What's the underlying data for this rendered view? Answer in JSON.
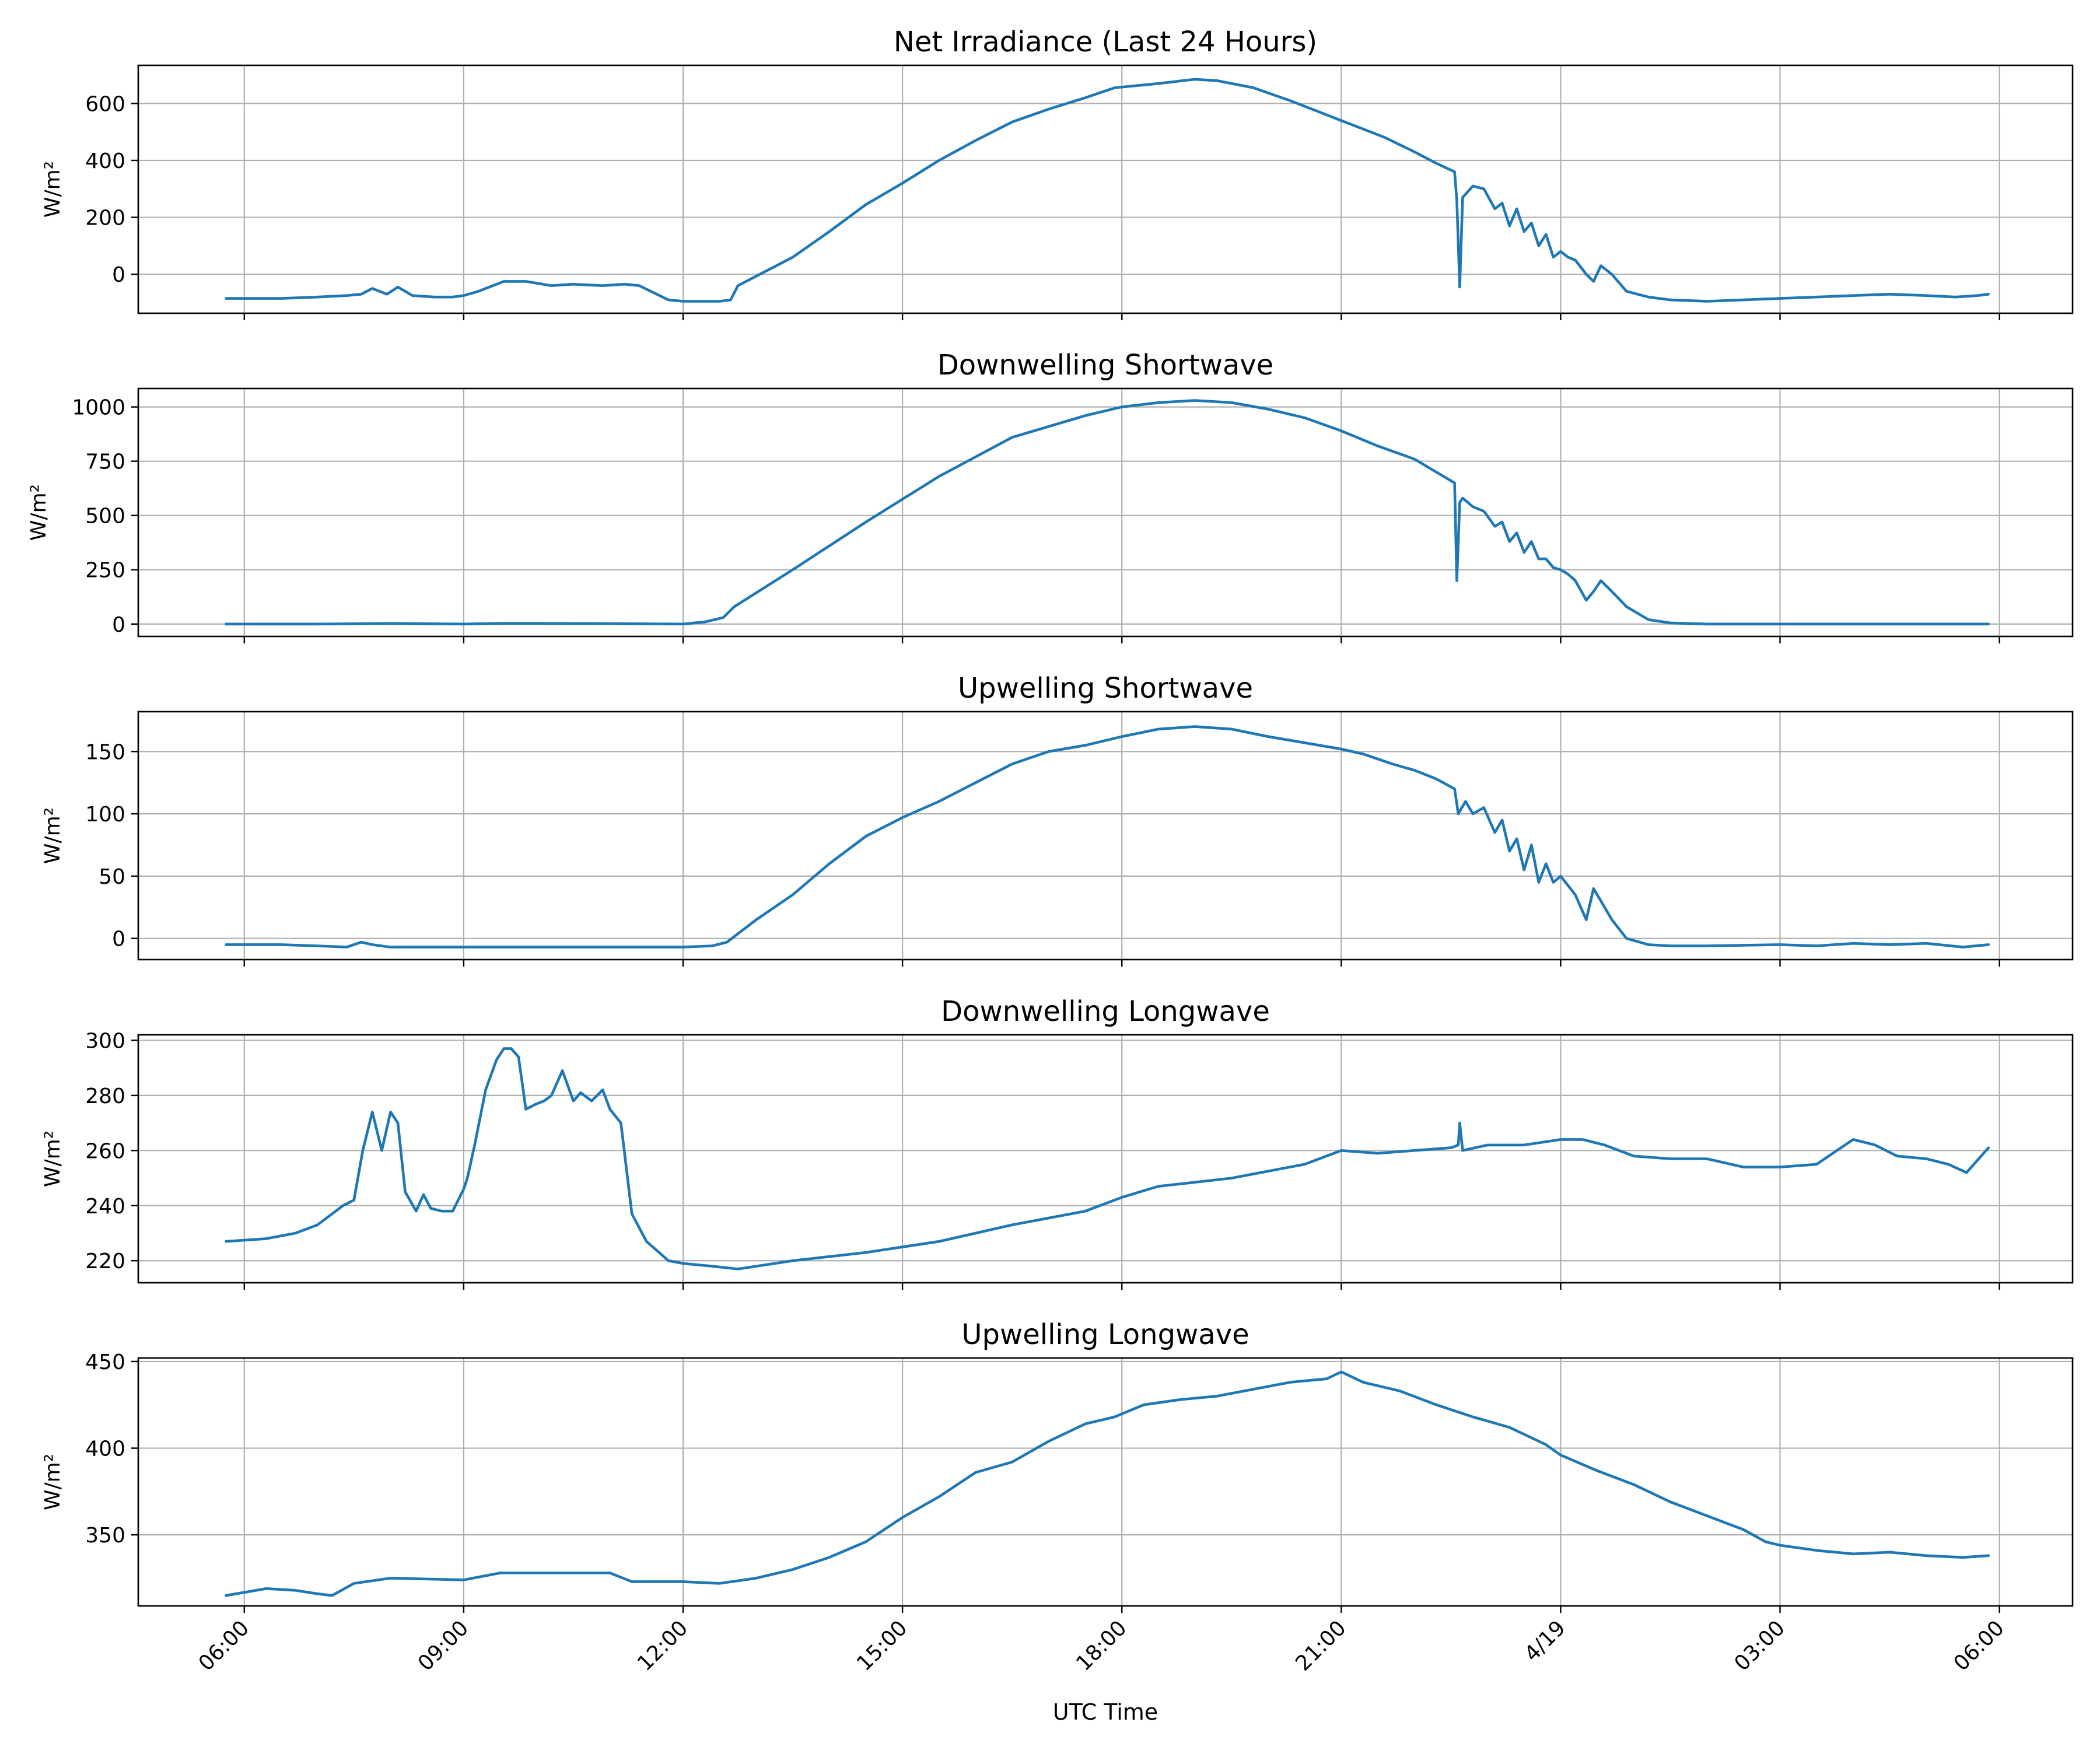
{
  "colors": {
    "series": "#1f77b4",
    "grid": "#b0b0b0"
  },
  "x_axis": {
    "label": "UTC Time",
    "tick_labels": [
      "06:00",
      "09:00",
      "12:00",
      "15:00",
      "18:00",
      "21:00",
      "4/19",
      "03:00",
      "06:00"
    ],
    "tick_hours": [
      6,
      9,
      12,
      15,
      18,
      21,
      24,
      27,
      30
    ],
    "range_hours": [
      4.55,
      31.0
    ],
    "tick_label_rotation_deg": 45
  },
  "chart_data": [
    {
      "type": "line",
      "title": "Net Irradiance (Last 24 Hours)",
      "ylabel": "W/m²",
      "ylim": [
        -137,
        734
      ],
      "yticks": [
        0,
        200,
        400,
        600
      ],
      "grid": true,
      "series": [
        {
          "x_hours": [
            5.75,
            6.5,
            7.0,
            7.4,
            7.6,
            7.75,
            7.95,
            8.1,
            8.3,
            8.6,
            8.85,
            9.0,
            9.2,
            9.4,
            9.55,
            9.7,
            9.85,
            10.2,
            10.5,
            10.9,
            11.2,
            11.4,
            11.8,
            12.0,
            12.5,
            12.65,
            12.75,
            13.5,
            14.0,
            14.5,
            15.0,
            15.5,
            16.0,
            16.5,
            17.0,
            17.5,
            17.9,
            18.5,
            19.0,
            19.3,
            19.8,
            20.3,
            20.8,
            21.2,
            21.6,
            22.0,
            22.3,
            22.55,
            22.58,
            22.62,
            22.66,
            22.8,
            22.95,
            23.1,
            23.2,
            23.3,
            23.4,
            23.5,
            23.6,
            23.7,
            23.8,
            23.9,
            24.0,
            24.1,
            24.2,
            24.35,
            24.45,
            24.55,
            24.7,
            24.9,
            25.2,
            25.5,
            26.0,
            26.5,
            27.0,
            27.5,
            28.0,
            28.5,
            29.0,
            29.4,
            29.7,
            29.85
          ],
          "y": [
            -85,
            -85,
            -80,
            -75,
            -70,
            -50,
            -70,
            -45,
            -75,
            -80,
            -80,
            -75,
            -60,
            -40,
            -25,
            -25,
            -25,
            -40,
            -35,
            -40,
            -35,
            -40,
            -90,
            -95,
            -95,
            -90,
            -40,
            60,
            150,
            245,
            320,
            400,
            470,
            535,
            580,
            620,
            655,
            670,
            685,
            680,
            655,
            610,
            560,
            520,
            480,
            430,
            390,
            360,
            260,
            -45,
            270,
            310,
            300,
            230,
            250,
            170,
            230,
            150,
            180,
            100,
            140,
            60,
            80,
            60,
            50,
            0,
            -25,
            30,
            0,
            -60,
            -80,
            -90,
            -95,
            -90,
            -85,
            -80,
            -75,
            -70,
            -75,
            -80,
            -75,
            -70
          ]
        }
      ]
    },
    {
      "type": "line",
      "title": "Downwelling Shortwave",
      "ylabel": "W/m²",
      "ylim": [
        -57,
        1085
      ],
      "yticks": [
        0,
        250,
        500,
        750,
        1000
      ],
      "grid": true,
      "series": [
        {
          "x_hours": [
            5.75,
            7.0,
            8.0,
            9.0,
            9.5,
            10.0,
            11.0,
            12.0,
            12.3,
            12.55,
            12.7,
            13.5,
            14.5,
            15.5,
            16.5,
            17.5,
            18.0,
            18.5,
            19.0,
            19.5,
            20.0,
            20.5,
            21.0,
            21.5,
            22.0,
            22.3,
            22.55,
            22.58,
            22.62,
            22.66,
            22.8,
            22.95,
            23.1,
            23.2,
            23.3,
            23.4,
            23.5,
            23.6,
            23.7,
            23.8,
            23.9,
            24.0,
            24.1,
            24.2,
            24.35,
            24.45,
            24.55,
            24.7,
            24.9,
            25.2,
            25.5,
            26.0,
            27.0,
            28.0,
            29.0,
            29.85
          ],
          "y": [
            0,
            0,
            3,
            0,
            3,
            3,
            2,
            0,
            10,
            30,
            80,
            250,
            470,
            680,
            860,
            960,
            1000,
            1020,
            1030,
            1020,
            990,
            950,
            890,
            820,
            760,
            700,
            650,
            200,
            560,
            580,
            540,
            520,
            450,
            470,
            380,
            420,
            330,
            380,
            300,
            300,
            260,
            250,
            230,
            200,
            110,
            150,
            200,
            150,
            80,
            20,
            5,
            0,
            0,
            0,
            0,
            0
          ]
        }
      ]
    },
    {
      "type": "line",
      "title": "Upwelling Shortwave",
      "ylabel": "W/m²",
      "ylim": [
        -17,
        182
      ],
      "yticks": [
        0,
        50,
        100,
        150
      ],
      "grid": true,
      "series": [
        {
          "x_hours": [
            5.75,
            6.5,
            7.0,
            7.4,
            7.6,
            7.75,
            8.0,
            9.0,
            10.0,
            11.0,
            12.0,
            12.4,
            12.6,
            13.0,
            13.5,
            14.0,
            14.5,
            15.0,
            15.5,
            16.0,
            16.5,
            17.0,
            17.5,
            18.0,
            18.5,
            19.0,
            19.5,
            20.0,
            20.5,
            21.0,
            21.3,
            21.7,
            22.0,
            22.3,
            22.55,
            22.6,
            22.7,
            22.8,
            22.95,
            23.1,
            23.2,
            23.3,
            23.4,
            23.5,
            23.6,
            23.7,
            23.8,
            23.9,
            24.0,
            24.2,
            24.35,
            24.45,
            24.55,
            24.7,
            24.9,
            25.2,
            25.5,
            26.0,
            27.0,
            27.5,
            28.0,
            28.5,
            29.0,
            29.5,
            29.85
          ],
          "y": [
            -5,
            -5,
            -6,
            -7,
            -3,
            -5,
            -7,
            -7,
            -7,
            -7,
            -7,
            -6,
            -3,
            15,
            35,
            60,
            82,
            97,
            110,
            125,
            140,
            150,
            155,
            162,
            168,
            170,
            168,
            162,
            157,
            152,
            148,
            140,
            135,
            128,
            120,
            100,
            110,
            100,
            105,
            85,
            95,
            70,
            80,
            55,
            75,
            45,
            60,
            45,
            50,
            35,
            15,
            40,
            30,
            15,
            0,
            -5,
            -6,
            -6,
            -5,
            -6,
            -4,
            -5,
            -4,
            -7,
            -5
          ]
        }
      ]
    },
    {
      "type": "line",
      "title": "Downwelling Longwave",
      "ylabel": "W/m²",
      "ylim": [
        212,
        302
      ],
      "yticks": [
        220,
        240,
        260,
        280,
        300
      ],
      "grid": true,
      "series": [
        {
          "x_hours": [
            5.75,
            6.3,
            6.7,
            7.0,
            7.35,
            7.5,
            7.62,
            7.75,
            7.88,
            8.0,
            8.1,
            8.2,
            8.35,
            8.45,
            8.55,
            8.7,
            8.85,
            9.0,
            9.05,
            9.15,
            9.3,
            9.45,
            9.55,
            9.65,
            9.75,
            9.85,
            10.0,
            10.1,
            10.2,
            10.35,
            10.5,
            10.6,
            10.75,
            10.9,
            11.0,
            11.15,
            11.3,
            11.5,
            11.8,
            12.0,
            12.4,
            12.75,
            13.5,
            14.5,
            15.5,
            16.5,
            17.5,
            18.0,
            18.5,
            19.5,
            20.5,
            21.0,
            21.5,
            22.0,
            22.5,
            22.6,
            22.62,
            22.66,
            23.0,
            23.5,
            24.0,
            24.3,
            24.6,
            25.0,
            25.5,
            26.0,
            26.5,
            27.0,
            27.5,
            28.0,
            28.3,
            28.6,
            29.0,
            29.3,
            29.55,
            29.85
          ],
          "y": [
            227,
            228,
            230,
            233,
            240,
            242,
            260,
            274,
            260,
            274,
            270,
            245,
            238,
            244,
            239,
            238,
            238,
            246,
            250,
            262,
            282,
            293,
            297,
            297,
            294,
            275,
            277,
            278,
            280,
            289,
            278,
            281,
            278,
            282,
            275,
            270,
            237,
            227,
            220,
            219,
            218,
            217,
            220,
            223,
            227,
            233,
            238,
            243,
            247,
            250,
            255,
            260,
            259,
            260,
            261,
            262,
            270,
            260,
            262,
            262,
            264,
            264,
            262,
            258,
            257,
            257,
            254,
            254,
            255,
            264,
            262,
            258,
            257,
            255,
            252,
            261
          ]
        }
      ]
    },
    {
      "type": "line",
      "title": "Upwelling Longwave",
      "ylabel": "W/m²",
      "ylim": [
        309,
        452
      ],
      "yticks": [
        350,
        400,
        450
      ],
      "grid": true,
      "series": [
        {
          "x_hours": [
            5.75,
            6.3,
            6.7,
            7.0,
            7.2,
            7.5,
            8.0,
            9.0,
            9.5,
            10.0,
            11.0,
            11.3,
            12.0,
            12.5,
            13.0,
            13.5,
            14.0,
            14.5,
            15.0,
            15.5,
            16.0,
            16.5,
            17.0,
            17.5,
            17.9,
            18.3,
            18.8,
            19.3,
            19.8,
            20.3,
            20.8,
            21.0,
            21.3,
            21.8,
            22.3,
            22.8,
            23.3,
            23.8,
            24.0,
            24.5,
            25.0,
            25.5,
            26.0,
            26.5,
            26.8,
            27.0,
            27.5,
            28.0,
            28.5,
            29.0,
            29.5,
            29.85
          ],
          "y": [
            315,
            319,
            318,
            316,
            315,
            322,
            325,
            324,
            328,
            328,
            328,
            323,
            323,
            322,
            325,
            330,
            337,
            346,
            360,
            372,
            386,
            392,
            404,
            414,
            418,
            425,
            428,
            430,
            434,
            438,
            440,
            444,
            438,
            433,
            425,
            418,
            412,
            402,
            396,
            387,
            379,
            369,
            361,
            353,
            346,
            344,
            341,
            339,
            340,
            338,
            337,
            338
          ]
        }
      ]
    }
  ]
}
